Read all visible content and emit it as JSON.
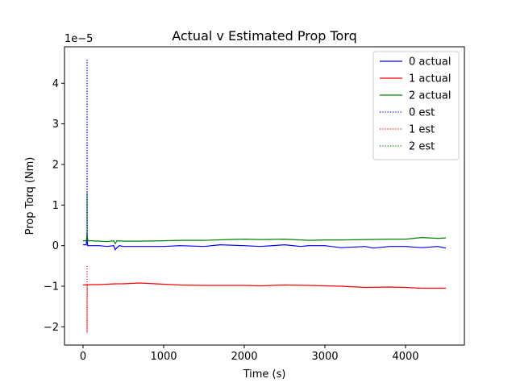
{
  "chart_data": {
    "type": "line",
    "title": "Actual v Estimated Prop Torq",
    "xlabel": "Time (s)",
    "ylabel": "Prop Torq (Nm)",
    "y_offset_text": "1e−5",
    "y_scale": 1e-05,
    "xlim": [
      -230,
      4730
    ],
    "ylim": [
      -2.45,
      4.9
    ],
    "x_ticks": [
      0,
      1000,
      2000,
      3000,
      4000
    ],
    "x_tick_labels": [
      "0",
      "1000",
      "2000",
      "3000",
      "4000"
    ],
    "y_ticks": [
      -2,
      -1,
      0,
      1,
      2,
      3,
      4
    ],
    "y_tick_labels": [
      "−2",
      "−1",
      "0",
      "1",
      "2",
      "3",
      "4"
    ],
    "grid": false,
    "legend_position": "top-right",
    "series": [
      {
        "name": "0 actual",
        "color": "#0000ff",
        "style": "solid",
        "x": [
          0,
          40,
          50,
          55,
          60,
          100,
          200,
          300,
          380,
          400,
          420,
          450,
          500,
          700,
          1000,
          1200,
          1500,
          1700,
          2000,
          2200,
          2500,
          2700,
          2800,
          3000,
          3200,
          3500,
          3600,
          3800,
          4000,
          4200,
          4400,
          4500
        ],
        "y": [
          0.02,
          0.02,
          0.3,
          0.05,
          0.0,
          0.0,
          0.0,
          -0.02,
          0.0,
          -0.1,
          -0.05,
          0.0,
          -0.02,
          -0.02,
          -0.02,
          0.0,
          -0.02,
          0.02,
          0.0,
          -0.02,
          0.02,
          -0.02,
          0.0,
          0.0,
          -0.05,
          -0.02,
          -0.06,
          -0.02,
          -0.02,
          -0.05,
          -0.02,
          -0.06
        ]
      },
      {
        "name": "1 actual",
        "color": "#ff0000",
        "style": "solid",
        "x": [
          0,
          100,
          200,
          300,
          400,
          500,
          600,
          700,
          800,
          1000,
          1200,
          1500,
          1800,
          2000,
          2200,
          2500,
          2800,
          3000,
          3200,
          3500,
          3800,
          4000,
          4200,
          4400,
          4500
        ],
        "y": [
          -0.97,
          -0.96,
          -0.96,
          -0.95,
          -0.94,
          -0.94,
          -0.93,
          -0.92,
          -0.93,
          -0.95,
          -0.97,
          -0.98,
          -0.98,
          -0.98,
          -0.99,
          -0.97,
          -0.98,
          -0.99,
          -1.0,
          -1.03,
          -1.02,
          -1.03,
          -1.05,
          -1.05,
          -1.05
        ]
      },
      {
        "name": "2 actual",
        "color": "#008000",
        "style": "solid",
        "x": [
          0,
          40,
          50,
          60,
          100,
          200,
          300,
          380,
          400,
          420,
          500,
          700,
          1000,
          1200,
          1500,
          1800,
          2000,
          2200,
          2500,
          2700,
          2800,
          3000,
          3200,
          3500,
          3800,
          4000,
          4200,
          4400,
          4500
        ],
        "y": [
          0.12,
          0.12,
          0.25,
          0.12,
          0.12,
          0.11,
          0.1,
          0.12,
          0.05,
          0.12,
          0.11,
          0.11,
          0.12,
          0.13,
          0.13,
          0.15,
          0.16,
          0.15,
          0.16,
          0.14,
          0.13,
          0.14,
          0.14,
          0.15,
          0.16,
          0.16,
          0.2,
          0.18,
          0.19
        ]
      },
      {
        "name": "0 est",
        "color": "#0000ff",
        "style": "dotted",
        "x": [
          49,
          50,
          51,
          52,
          53,
          54,
          56,
          60
        ],
        "y": [
          0.3,
          4.6,
          3.0,
          1.5,
          0.5,
          0.0,
          0.0,
          0.0
        ]
      },
      {
        "name": "1 est",
        "color": "#ff0000",
        "style": "dotted",
        "x": [
          49,
          50,
          51,
          52,
          53,
          54,
          56,
          60
        ],
        "y": [
          -0.5,
          -2.15,
          -1.6,
          -1.2,
          -1.0,
          -0.97,
          -0.97,
          -0.97
        ]
      },
      {
        "name": "2 est",
        "color": "#008000",
        "style": "dotted",
        "x": [
          49,
          50,
          51,
          52,
          53,
          54,
          56,
          60
        ],
        "y": [
          0.2,
          1.3,
          0.9,
          0.5,
          0.2,
          0.12,
          0.12,
          0.12
        ]
      }
    ]
  }
}
